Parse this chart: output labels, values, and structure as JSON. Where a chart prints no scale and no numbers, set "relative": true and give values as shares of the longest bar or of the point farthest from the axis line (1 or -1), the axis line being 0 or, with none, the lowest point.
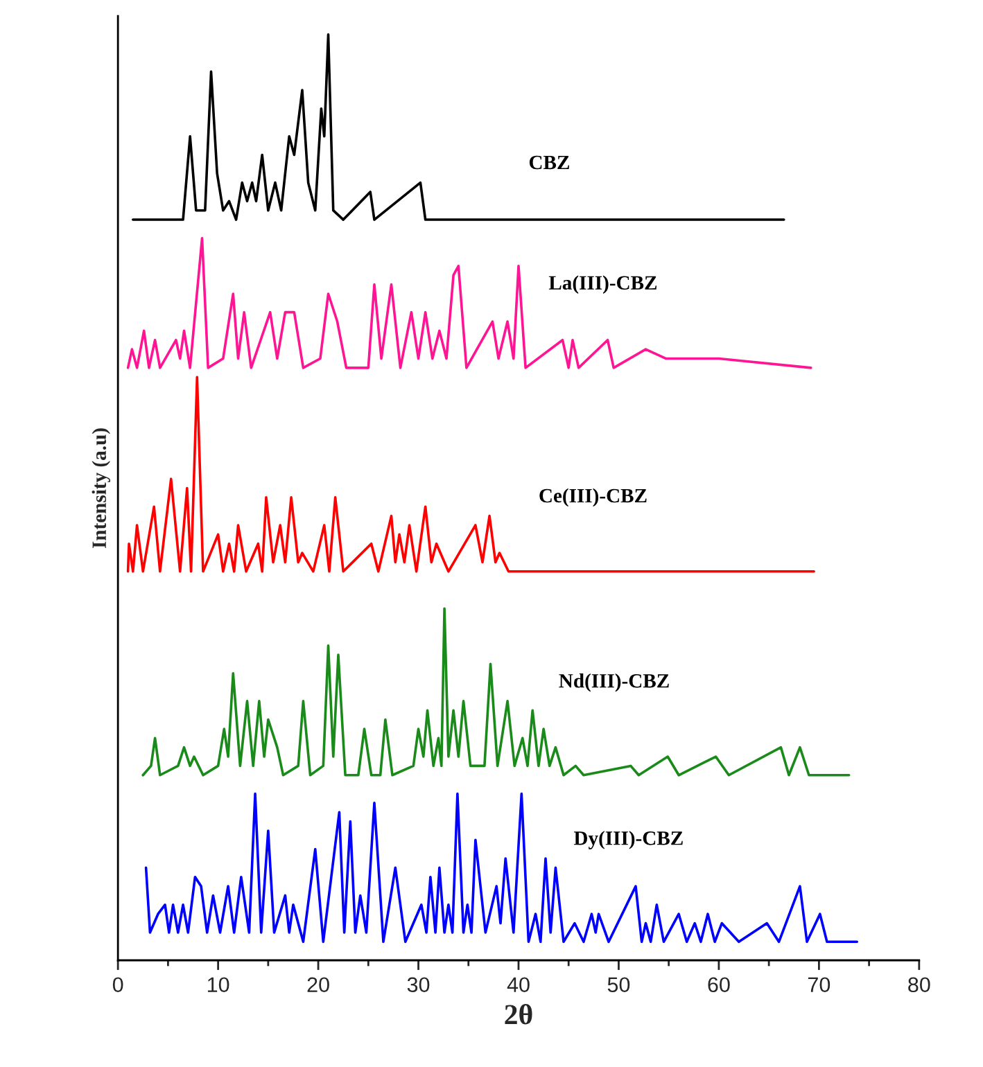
{
  "chart_data": {
    "type": "line",
    "relative": true,
    "xlabel": "2θ",
    "ylabel": "Intensity (a.u)",
    "xlim": [
      0,
      80
    ],
    "xticks": [
      0,
      10,
      20,
      30,
      40,
      50,
      60,
      70,
      80
    ],
    "grid": false,
    "legend": false,
    "marker": "none",
    "line_style": "solid",
    "series": [
      {
        "name": "CBZ",
        "color": "#000000",
        "x": [
          1.5,
          6.5,
          7.2,
          7.8,
          8.7,
          9.3,
          9.9,
          10.5,
          11.1,
          11.8,
          12.4,
          12.9,
          13.4,
          13.8,
          14.4,
          15.0,
          15.7,
          16.3,
          17.1,
          17.6,
          18.4,
          19.0,
          19.7,
          20.3,
          20.6,
          21.0,
          21.5,
          22.5,
          25.2,
          25.6,
          30.2,
          30.7,
          40.0,
          66.5
        ],
        "values": [
          0.8,
          0.8,
          0.89,
          0.81,
          0.81,
          0.96,
          0.85,
          0.81,
          0.82,
          0.8,
          0.84,
          0.82,
          0.84,
          0.82,
          0.87,
          0.81,
          0.84,
          0.81,
          0.89,
          0.87,
          0.94,
          0.84,
          0.81,
          0.92,
          0.89,
          1.0,
          0.81,
          0.8,
          0.83,
          0.8,
          0.84,
          0.8,
          0.8,
          0.8
        ]
      },
      {
        "name": "La(III)-CBZ",
        "color": "#ff1493",
        "x": [
          1.0,
          1.4,
          1.9,
          2.6,
          3.1,
          3.7,
          4.2,
          5.8,
          6.2,
          6.6,
          7.2,
          8.4,
          9.0,
          10.5,
          11.5,
          12.0,
          12.6,
          13.3,
          15.2,
          15.9,
          16.7,
          17.6,
          18.5,
          20.2,
          21.0,
          21.9,
          22.8,
          25.0,
          25.6,
          26.3,
          27.3,
          28.2,
          29.3,
          30.0,
          30.7,
          31.4,
          32.1,
          32.8,
          33.5,
          34.0,
          34.8,
          37.4,
          38.0,
          38.9,
          39.5,
          40.0,
          40.7,
          44.4,
          45.0,
          45.4,
          46.0,
          48.9,
          49.5,
          52.7,
          54.7,
          60,
          69.2
        ],
        "values": [
          0.64,
          0.66,
          0.64,
          0.68,
          0.64,
          0.67,
          0.64,
          0.67,
          0.65,
          0.68,
          0.64,
          0.78,
          0.64,
          0.65,
          0.72,
          0.65,
          0.7,
          0.64,
          0.7,
          0.65,
          0.7,
          0.7,
          0.64,
          0.65,
          0.72,
          0.69,
          0.64,
          0.64,
          0.73,
          0.65,
          0.73,
          0.64,
          0.7,
          0.65,
          0.7,
          0.65,
          0.68,
          0.65,
          0.74,
          0.75,
          0.64,
          0.69,
          0.65,
          0.69,
          0.65,
          0.75,
          0.64,
          0.67,
          0.64,
          0.67,
          0.64,
          0.67,
          0.64,
          0.66,
          0.65,
          0.65,
          0.64
        ]
      },
      {
        "name": "Ce(III)-CBZ",
        "color": "#ff0000",
        "x": [
          1.0,
          1.1,
          1.5,
          1.9,
          2.5,
          3.6,
          4.2,
          5.3,
          6.2,
          6.9,
          7.3,
          7.9,
          8.5,
          10.0,
          10.5,
          11.1,
          11.6,
          12.0,
          12.8,
          14.0,
          14.4,
          14.8,
          15.5,
          16.2,
          16.7,
          17.3,
          18.0,
          18.4,
          19.5,
          20.6,
          21.1,
          21.7,
          22.5,
          25.3,
          26.0,
          27.3,
          27.7,
          28.1,
          28.6,
          29.1,
          29.8,
          30.7,
          31.3,
          31.8,
          33,
          35.7,
          36.4,
          37.1,
          37.7,
          38.1,
          39,
          69.5
        ],
        "values": [
          0.42,
          0.45,
          0.42,
          0.47,
          0.42,
          0.49,
          0.42,
          0.52,
          0.42,
          0.51,
          0.42,
          0.63,
          0.42,
          0.46,
          0.42,
          0.45,
          0.42,
          0.47,
          0.42,
          0.45,
          0.42,
          0.5,
          0.43,
          0.47,
          0.43,
          0.5,
          0.43,
          0.44,
          0.42,
          0.47,
          0.42,
          0.5,
          0.42,
          0.45,
          0.42,
          0.48,
          0.43,
          0.46,
          0.43,
          0.47,
          0.42,
          0.49,
          0.43,
          0.45,
          0.42,
          0.47,
          0.43,
          0.48,
          0.43,
          0.44,
          0.42,
          0.42
        ]
      },
      {
        "name": "Nd(III)-CBZ",
        "color": "#1a8a1a",
        "x": [
          2.5,
          3.3,
          3.7,
          4.2,
          6.0,
          6.6,
          7.2,
          7.6,
          8.5,
          10.0,
          10.6,
          11.0,
          11.5,
          12.2,
          12.9,
          13.5,
          14.1,
          14.6,
          15.0,
          15.9,
          16.5,
          18.0,
          18.5,
          19.2,
          20.5,
          21.0,
          21.5,
          22.0,
          22.7,
          24.0,
          24.6,
          25.3,
          26.2,
          26.7,
          27.4,
          29.5,
          30.0,
          30.5,
          30.9,
          31.5,
          32.0,
          32.3,
          32.6,
          33.0,
          33.5,
          34.0,
          34.5,
          35.2,
          36.6,
          37.2,
          37.9,
          38.9,
          39.6,
          40.4,
          40.9,
          41.4,
          42.0,
          42.5,
          43.1,
          43.7,
          44.5,
          45.7,
          46.5,
          51.2,
          52,
          54.9,
          56,
          59.7,
          61,
          66.2,
          67.0,
          68.1,
          69,
          73.0
        ],
        "values": [
          0.2,
          0.21,
          0.24,
          0.2,
          0.21,
          0.23,
          0.21,
          0.22,
          0.2,
          0.21,
          0.25,
          0.22,
          0.31,
          0.21,
          0.28,
          0.21,
          0.28,
          0.22,
          0.26,
          0.23,
          0.2,
          0.21,
          0.28,
          0.2,
          0.21,
          0.34,
          0.22,
          0.33,
          0.2,
          0.2,
          0.25,
          0.2,
          0.2,
          0.26,
          0.2,
          0.21,
          0.25,
          0.22,
          0.27,
          0.21,
          0.24,
          0.21,
          0.38,
          0.22,
          0.27,
          0.22,
          0.28,
          0.21,
          0.21,
          0.32,
          0.21,
          0.28,
          0.21,
          0.24,
          0.21,
          0.27,
          0.21,
          0.25,
          0.21,
          0.23,
          0.2,
          0.21,
          0.2,
          0.21,
          0.2,
          0.22,
          0.2,
          0.22,
          0.2,
          0.23,
          0.2,
          0.23,
          0.2,
          0.2
        ]
      },
      {
        "name": "Dy(III)-CBZ",
        "color": "#0000ff",
        "x": [
          2.8,
          3.2,
          4.0,
          4.7,
          5.1,
          5.5,
          6.0,
          6.5,
          7.0,
          7.7,
          8.3,
          8.9,
          9.5,
          10.2,
          11.0,
          11.6,
          12.3,
          13.1,
          13.7,
          14.3,
          15.0,
          15.6,
          16.7,
          17.1,
          17.5,
          18.5,
          19.7,
          20.5,
          22.1,
          22.6,
          23.2,
          23.7,
          24.2,
          24.8,
          25.6,
          26.5,
          27.7,
          28.7,
          30.3,
          30.8,
          31.2,
          31.7,
          32.1,
          32.6,
          33.0,
          33.4,
          33.9,
          34.5,
          34.9,
          35.3,
          35.7,
          36.7,
          37.8,
          38.2,
          38.7,
          39.5,
          40.3,
          41.0,
          41.7,
          42.2,
          42.7,
          43.2,
          43.7,
          44.5,
          45.6,
          46.5,
          47.3,
          47.7,
          48.0,
          49,
          51.7,
          52.3,
          52.7,
          53.2,
          53.8,
          54.5,
          56.0,
          56.8,
          57.6,
          58.2,
          58.9,
          59.6,
          60.3,
          62,
          64.8,
          66,
          68.1,
          68.8,
          70.1,
          70.8,
          73.8
        ],
        "values": [
          0.1,
          0.03,
          0.05,
          0.06,
          0.03,
          0.06,
          0.03,
          0.06,
          0.03,
          0.09,
          0.08,
          0.03,
          0.07,
          0.03,
          0.08,
          0.03,
          0.09,
          0.03,
          0.18,
          0.03,
          0.14,
          0.03,
          0.07,
          0.03,
          0.06,
          0.02,
          0.12,
          0.02,
          0.16,
          0.03,
          0.15,
          0.03,
          0.07,
          0.03,
          0.17,
          0.02,
          0.1,
          0.02,
          0.06,
          0.03,
          0.09,
          0.03,
          0.1,
          0.03,
          0.06,
          0.03,
          0.18,
          0.03,
          0.06,
          0.03,
          0.13,
          0.03,
          0.08,
          0.04,
          0.11,
          0.03,
          0.18,
          0.02,
          0.05,
          0.02,
          0.11,
          0.03,
          0.1,
          0.02,
          0.04,
          0.02,
          0.05,
          0.03,
          0.05,
          0.02,
          0.08,
          0.02,
          0.04,
          0.02,
          0.06,
          0.02,
          0.05,
          0.02,
          0.04,
          0.02,
          0.05,
          0.02,
          0.04,
          0.02,
          0.04,
          0.02,
          0.08,
          0.02,
          0.05,
          0.02,
          0.02
        ]
      }
    ]
  }
}
